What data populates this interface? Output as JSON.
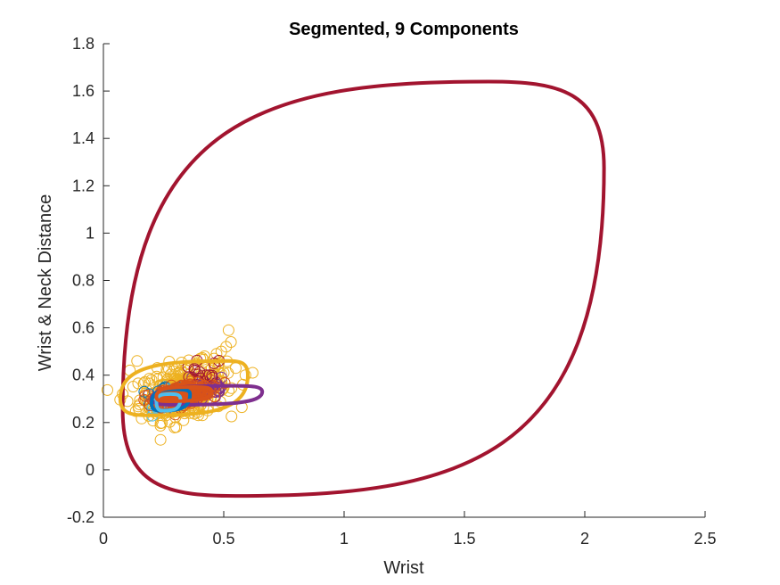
{
  "chart_data": {
    "type": "scatter",
    "title": "Segmented, 9 Components",
    "xlabel": "Wrist",
    "ylabel": "Wrist & Neck Distance",
    "xlim": [
      0,
      2.5
    ],
    "ylim": [
      -0.2,
      1.8
    ],
    "xticks": [
      0,
      0.5,
      1,
      1.5,
      2,
      2.5
    ],
    "xtick_labels": [
      "0",
      "0.5",
      "1",
      "1.5",
      "2",
      "2.5"
    ],
    "yticks": [
      -0.2,
      0,
      0.2,
      0.4,
      0.6,
      0.8,
      1,
      1.2,
      1.4,
      1.6,
      1.8
    ],
    "ytick_labels": [
      "-0.2",
      "0",
      "0.2",
      "0.4",
      "0.6",
      "0.8",
      "1",
      "1.2",
      "1.4",
      "1.6",
      "1.8"
    ],
    "grid": false,
    "legend": "none",
    "ellipses": [
      {
        "color": "#A2142F",
        "center": [
          1.08,
          0.765
        ],
        "extents": [
          [
            0.08,
            0.255
          ],
          [
            2.08,
            1.275
          ],
          [
            1.6,
            1.64
          ],
          [
            0.55,
            -0.11
          ]
        ]
      },
      {
        "color": "#EDB120",
        "center": [
          0.34,
          0.35
        ],
        "extents": [
          [
            0.07,
            0.3
          ],
          [
            0.6,
            0.4
          ],
          [
            0.52,
            0.46
          ],
          [
            0.19,
            0.23
          ]
        ]
      },
      {
        "color": "#7E2F8E",
        "center": [
          0.4,
          0.315
        ],
        "extents": [
          [
            0.2,
            0.3
          ],
          [
            0.66,
            0.33
          ],
          [
            0.55,
            0.355
          ],
          [
            0.3,
            0.275
          ]
        ]
      },
      {
        "color": "#0072BD",
        "center": [
          0.28,
          0.3
        ],
        "extents": [
          [
            0.2,
            0.28
          ],
          [
            0.36,
            0.32
          ],
          [
            0.3,
            0.34
          ],
          [
            0.24,
            0.25
          ]
        ]
      },
      {
        "color": "#4DBEEE",
        "center": [
          0.27,
          0.295
        ],
        "extents": [
          [
            0.22,
            0.29
          ],
          [
            0.32,
            0.3
          ],
          [
            0.28,
            0.32
          ],
          [
            0.25,
            0.25
          ]
        ]
      },
      {
        "color": "#D95319",
        "center": [
          0.33,
          0.32
        ],
        "extents": [
          [
            0.22,
            0.31
          ],
          [
            0.45,
            0.33
          ],
          [
            0.38,
            0.35
          ],
          [
            0.26,
            0.29
          ]
        ]
      }
    ],
    "series": [
      {
        "color": "#EDB120",
        "center": [
          0.33,
          0.33
        ],
        "spread": [
          0.09,
          0.055
        ],
        "count": 320,
        "outliers": [
          [
            0.52,
            0.59
          ],
          [
            0.53,
            0.54
          ],
          [
            0.51,
            0.52
          ],
          [
            0.47,
            0.49
          ],
          [
            0.46,
            0.47
          ],
          [
            0.55,
            0.43
          ],
          [
            0.62,
            0.41
          ],
          [
            0.59,
            0.4
          ],
          [
            0.49,
            0.5
          ],
          [
            0.42,
            0.48
          ],
          [
            0.14,
            0.46
          ],
          [
            0.11,
            0.42
          ],
          [
            0.08,
            0.32
          ],
          [
            0.1,
            0.29
          ],
          [
            0.24,
            0.24
          ],
          [
            0.26,
            0.23
          ],
          [
            0.5,
            0.41
          ],
          [
            0.48,
            0.45
          ],
          [
            0.45,
            0.43
          ],
          [
            0.2,
            0.38
          ]
        ]
      },
      {
        "color": "#7E2F8E",
        "center": [
          0.4,
          0.33
        ],
        "spread": [
          0.07,
          0.02
        ],
        "count": 60,
        "outliers": [
          [
            0.49,
            0.39
          ],
          [
            0.44,
            0.35
          ],
          [
            0.48,
            0.33
          ]
        ]
      },
      {
        "color": "#A2142F",
        "center": [
          0.4,
          0.4
        ],
        "spread": [
          0.05,
          0.03
        ],
        "count": 12,
        "outliers": [
          [
            0.46,
            0.45
          ],
          [
            0.38,
            0.42
          ],
          [
            0.44,
            0.4
          ]
        ]
      },
      {
        "color": "#0072BD",
        "center": [
          0.27,
          0.31
        ],
        "spread": [
          0.03,
          0.02
        ],
        "count": 40,
        "outliers": [
          [
            0.17,
            0.33
          ],
          [
            0.19,
            0.32
          ]
        ]
      },
      {
        "color": "#4DBEEE",
        "center": [
          0.26,
          0.29
        ],
        "spread": [
          0.025,
          0.02
        ],
        "count": 30,
        "outliers": [
          [
            0.26,
            0.25
          ]
        ]
      },
      {
        "color": "#D95319",
        "center": [
          0.33,
          0.32
        ],
        "spread": [
          0.055,
          0.02
        ],
        "count": 260,
        "outliers": [
          [
            0.4,
            0.34
          ],
          [
            0.24,
            0.3
          ]
        ]
      }
    ]
  }
}
